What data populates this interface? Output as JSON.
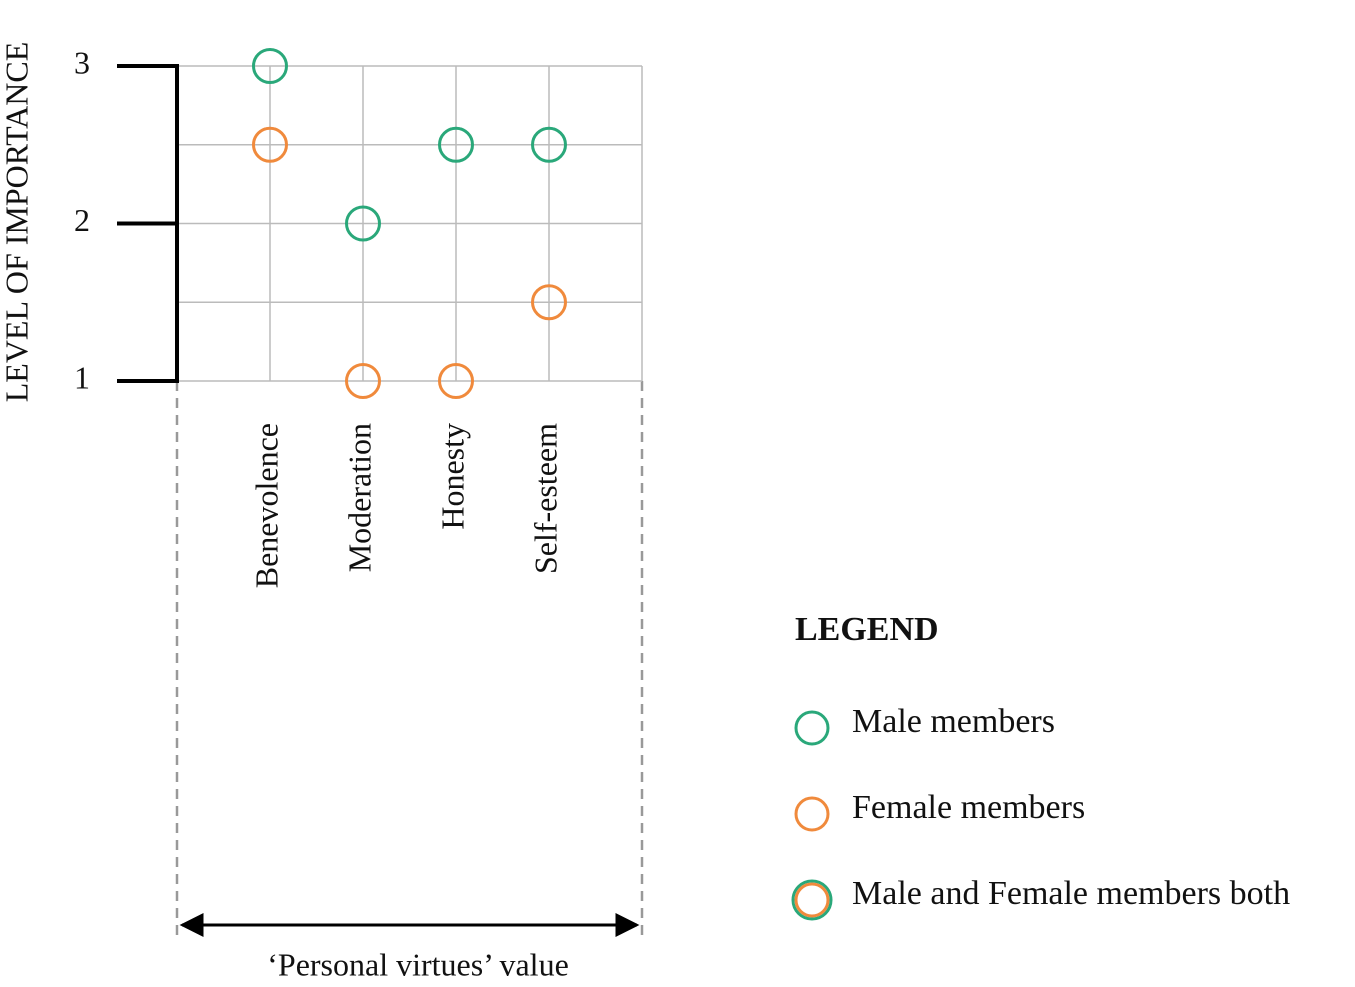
{
  "chart_data": {
    "type": "scatter",
    "y_label": "LEVEL OF IMPORTANCE",
    "x_label": "‘Personal virtues’ value",
    "categories": [
      "Benevolence",
      "Moderation",
      "Honesty",
      "Self-esteem"
    ],
    "series": [
      {
        "name": "Male members",
        "color": "#2aa87a",
        "values": [
          3,
          2,
          2.5,
          2.5
        ]
      },
      {
        "name": "Female members",
        "color": "#f08a3c",
        "values": [
          2.5,
          1,
          1,
          1.5
        ]
      },
      {
        "name": "Male and Female members both",
        "color": "#f08a3c",
        "edge_color": "#2aa87a",
        "values": [
          null,
          null,
          null,
          null
        ]
      }
    ],
    "ylim": [
      1,
      3
    ],
    "yticks": [
      1,
      2,
      3
    ],
    "yminor": [
      1.5,
      2.5
    ],
    "grid": true,
    "legend_title": "LEGEND"
  }
}
